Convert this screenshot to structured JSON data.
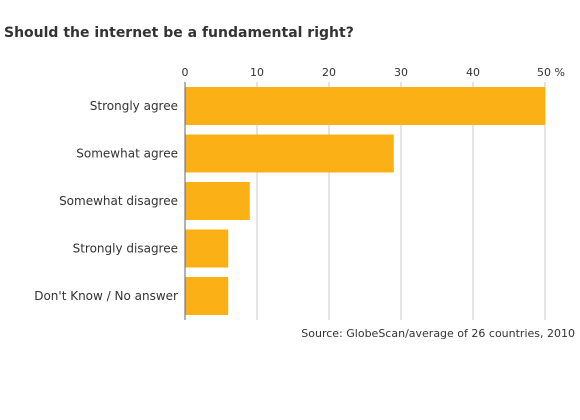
{
  "chart_data": {
    "type": "bar",
    "orientation": "horizontal",
    "title": "Should the internet be a fundamental right?",
    "categories": [
      "Strongly agree",
      "Somewhat agree",
      "Somewhat disagree",
      "Strongly disagree",
      "Don't Know / No answer"
    ],
    "values": [
      50,
      29,
      9,
      6,
      6
    ],
    "x_ticks": [
      "0",
      "10",
      "20",
      "30",
      "40",
      "50 %"
    ],
    "xlim": [
      0,
      50
    ],
    "grid": true,
    "bar_color": "#fbb116",
    "source": "Source: GlobeScan/average of 26 countries, 2010"
  }
}
